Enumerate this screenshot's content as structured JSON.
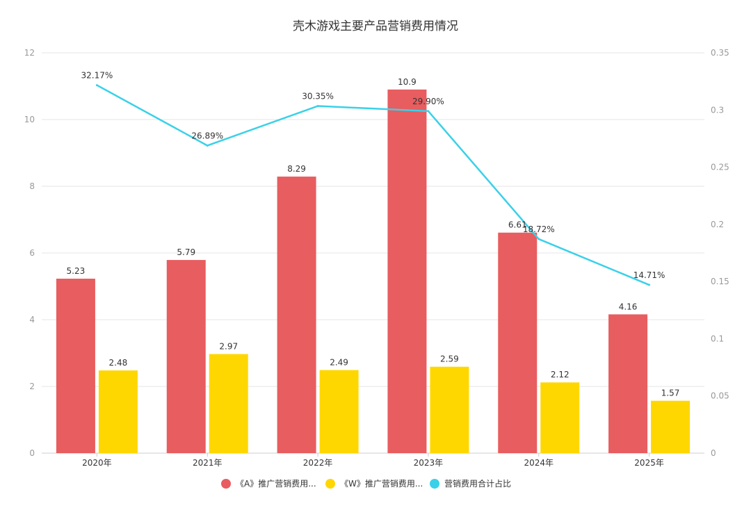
{
  "chart_data": {
    "type": "bar",
    "title": "壳木游戏主要产品营销费用情况",
    "categories": [
      "2020年",
      "2021年",
      "2022年",
      "2023年",
      "2024年",
      "2025年"
    ],
    "series": [
      {
        "name": "《A》推广营销费用...",
        "type": "bar",
        "axis": "left",
        "color": "#e85d5f",
        "values": [
          5.23,
          5.79,
          8.29,
          10.9,
          6.61,
          4.16
        ],
        "labels": [
          "5.23",
          "5.79",
          "8.29",
          "10.9",
          "6.61",
          "4.16"
        ]
      },
      {
        "name": "《W》推广营销费用...",
        "type": "bar",
        "axis": "left",
        "color": "#ffd700",
        "values": [
          2.48,
          2.97,
          2.49,
          2.59,
          2.12,
          1.57
        ],
        "labels": [
          "2.48",
          "2.97",
          "2.49",
          "2.59",
          "2.12",
          "1.57"
        ]
      },
      {
        "name": "营销费用合计占比",
        "type": "line",
        "axis": "right",
        "color": "#3ad1e8",
        "values": [
          0.3217,
          0.2689,
          0.3035,
          0.299,
          0.1872,
          0.1471
        ],
        "labels": [
          "32.17%",
          "26.89%",
          "30.35%",
          "29.90%",
          "18.72%",
          "14.71%"
        ]
      }
    ],
    "y_left": {
      "range": [
        0,
        12
      ],
      "ticks": [
        0,
        2,
        4,
        6,
        8,
        10,
        12
      ],
      "tick_labels": [
        "0",
        "2",
        "4",
        "6",
        "8",
        "10",
        "12"
      ]
    },
    "y_right": {
      "range": [
        0,
        0.35
      ],
      "ticks": [
        0,
        0.05,
        0.1,
        0.15,
        0.2,
        0.25,
        0.3,
        0.35
      ],
      "tick_labels": [
        "0",
        "0.05",
        "0.1",
        "0.15",
        "0.2",
        "0.25",
        "0.3",
        "0.35"
      ]
    },
    "grid": true,
    "legend_position": "bottom"
  }
}
